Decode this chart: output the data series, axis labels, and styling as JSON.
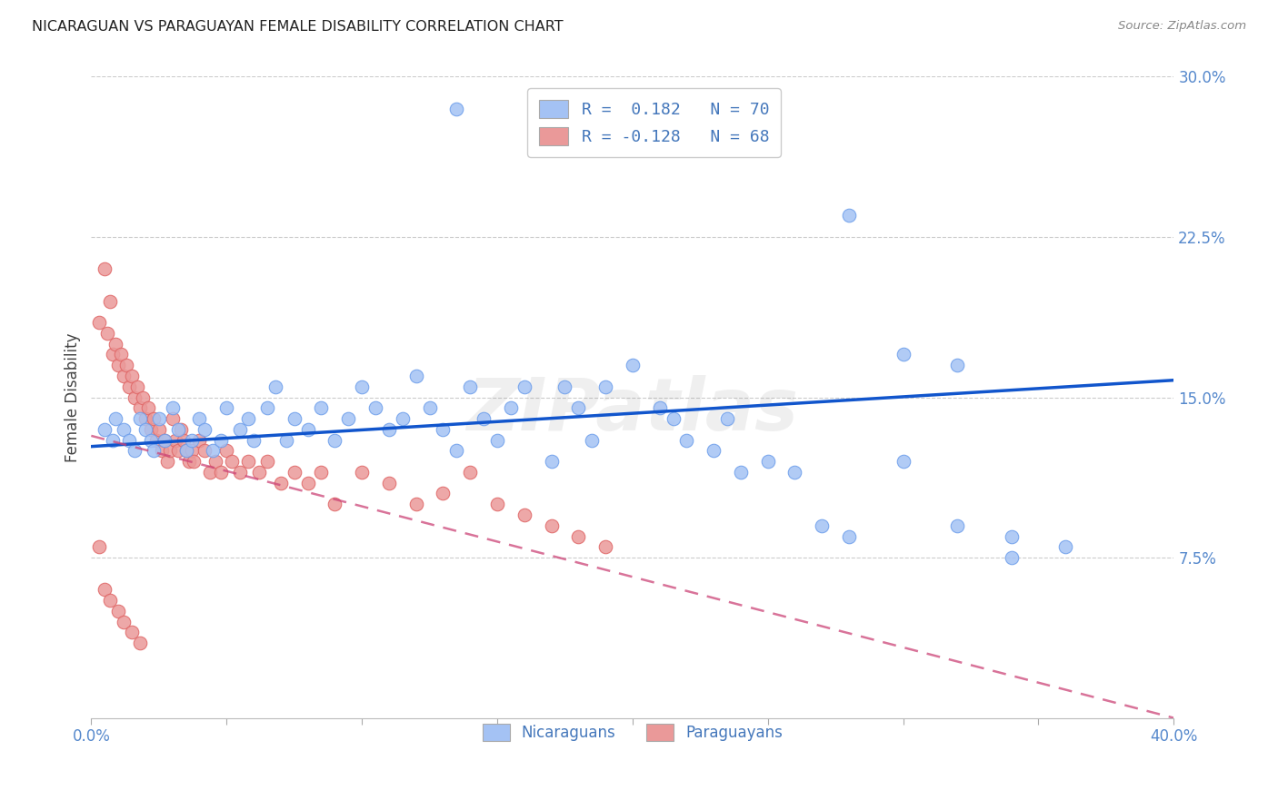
{
  "title": "NICARAGUAN VS PARAGUAYAN FEMALE DISABILITY CORRELATION CHART",
  "source": "Source: ZipAtlas.com",
  "ylabel": "Female Disability",
  "xlim": [
    0.0,
    0.4
  ],
  "ylim": [
    0.0,
    0.3
  ],
  "blue_color": "#a4c2f4",
  "blue_edge_color": "#6d9eeb",
  "pink_color": "#ea9999",
  "pink_edge_color": "#e06666",
  "blue_line_color": "#1155cc",
  "pink_line_color": "#cc4477",
  "legend_blue_label": "R =  0.182   N = 70",
  "legend_pink_label": "R = -0.128   N = 68",
  "watermark": "ZIPatlas",
  "bottom_legend_blue": "Nicaraguans",
  "bottom_legend_pink": "Paraguayans",
  "blue_R": 0.182,
  "blue_N": 70,
  "pink_R": -0.128,
  "pink_N": 68,
  "blue_line_x0": 0.0,
  "blue_line_y0": 0.127,
  "blue_line_x1": 0.4,
  "blue_line_y1": 0.158,
  "pink_line_x0": 0.0,
  "pink_line_y0": 0.132,
  "pink_line_x1": 0.4,
  "pink_line_y1": 0.0,
  "blue_scatter_x": [
    0.005,
    0.008,
    0.009,
    0.012,
    0.014,
    0.016,
    0.018,
    0.02,
    0.022,
    0.023,
    0.025,
    0.027,
    0.03,
    0.032,
    0.035,
    0.037,
    0.04,
    0.042,
    0.045,
    0.048,
    0.05,
    0.055,
    0.058,
    0.06,
    0.065,
    0.068,
    0.072,
    0.075,
    0.08,
    0.085,
    0.09,
    0.095,
    0.1,
    0.105,
    0.11,
    0.115,
    0.12,
    0.125,
    0.13,
    0.135,
    0.14,
    0.145,
    0.15,
    0.155,
    0.16,
    0.17,
    0.175,
    0.18,
    0.185,
    0.19,
    0.2,
    0.21,
    0.215,
    0.22,
    0.23,
    0.235,
    0.24,
    0.25,
    0.26,
    0.27,
    0.28,
    0.3,
    0.32,
    0.34,
    0.135,
    0.28,
    0.3,
    0.32,
    0.34,
    0.36
  ],
  "blue_scatter_y": [
    0.135,
    0.13,
    0.14,
    0.135,
    0.13,
    0.125,
    0.14,
    0.135,
    0.13,
    0.125,
    0.14,
    0.13,
    0.145,
    0.135,
    0.125,
    0.13,
    0.14,
    0.135,
    0.125,
    0.13,
    0.145,
    0.135,
    0.14,
    0.13,
    0.145,
    0.155,
    0.13,
    0.14,
    0.135,
    0.145,
    0.13,
    0.14,
    0.155,
    0.145,
    0.135,
    0.14,
    0.16,
    0.145,
    0.135,
    0.125,
    0.155,
    0.14,
    0.13,
    0.145,
    0.155,
    0.12,
    0.155,
    0.145,
    0.13,
    0.155,
    0.165,
    0.145,
    0.14,
    0.13,
    0.125,
    0.14,
    0.115,
    0.12,
    0.115,
    0.09,
    0.085,
    0.12,
    0.09,
    0.085,
    0.285,
    0.235,
    0.17,
    0.165,
    0.075,
    0.08
  ],
  "pink_scatter_x": [
    0.003,
    0.005,
    0.006,
    0.007,
    0.008,
    0.009,
    0.01,
    0.011,
    0.012,
    0.013,
    0.014,
    0.015,
    0.016,
    0.017,
    0.018,
    0.019,
    0.02,
    0.021,
    0.022,
    0.023,
    0.024,
    0.025,
    0.026,
    0.027,
    0.028,
    0.029,
    0.03,
    0.031,
    0.032,
    0.033,
    0.034,
    0.035,
    0.036,
    0.037,
    0.038,
    0.04,
    0.042,
    0.044,
    0.046,
    0.048,
    0.05,
    0.052,
    0.055,
    0.058,
    0.062,
    0.065,
    0.07,
    0.075,
    0.08,
    0.085,
    0.09,
    0.1,
    0.11,
    0.12,
    0.13,
    0.14,
    0.15,
    0.16,
    0.17,
    0.18,
    0.19,
    0.003,
    0.005,
    0.007,
    0.01,
    0.012,
    0.015,
    0.018
  ],
  "pink_scatter_y": [
    0.185,
    0.21,
    0.18,
    0.195,
    0.17,
    0.175,
    0.165,
    0.17,
    0.16,
    0.165,
    0.155,
    0.16,
    0.15,
    0.155,
    0.145,
    0.15,
    0.14,
    0.145,
    0.135,
    0.14,
    0.13,
    0.135,
    0.125,
    0.13,
    0.12,
    0.125,
    0.14,
    0.13,
    0.125,
    0.135,
    0.13,
    0.125,
    0.12,
    0.125,
    0.12,
    0.13,
    0.125,
    0.115,
    0.12,
    0.115,
    0.125,
    0.12,
    0.115,
    0.12,
    0.115,
    0.12,
    0.11,
    0.115,
    0.11,
    0.115,
    0.1,
    0.115,
    0.11,
    0.1,
    0.105,
    0.115,
    0.1,
    0.095,
    0.09,
    0.085,
    0.08,
    0.08,
    0.06,
    0.055,
    0.05,
    0.045,
    0.04,
    0.035
  ]
}
